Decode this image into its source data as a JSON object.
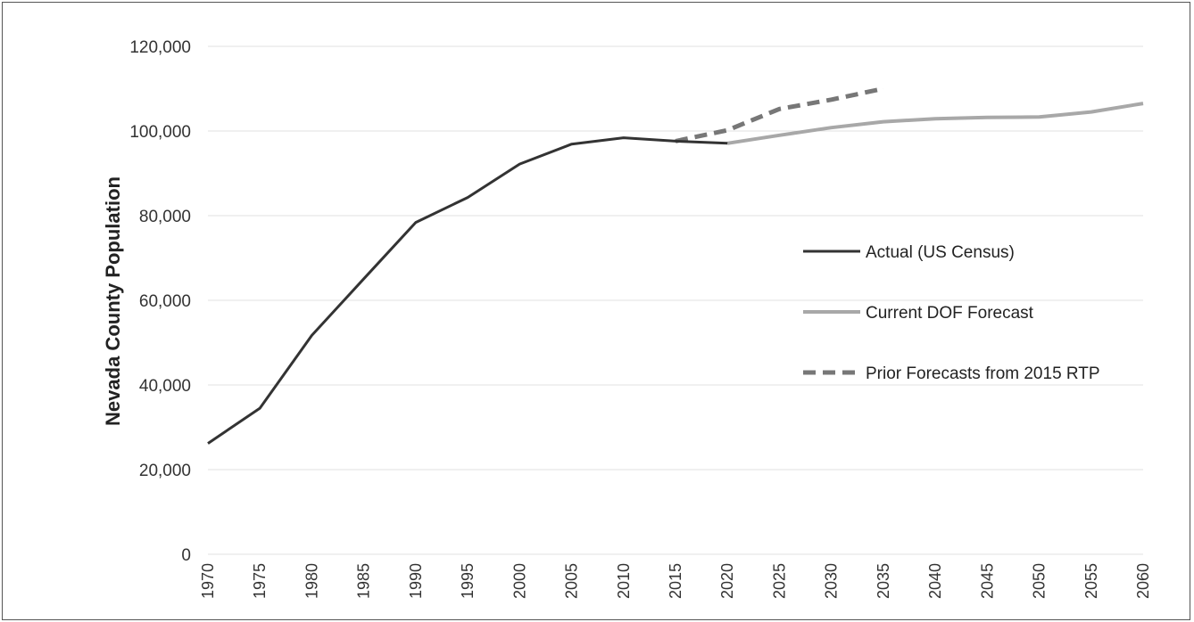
{
  "chart_data": {
    "type": "line",
    "title": "",
    "xlabel": "",
    "ylabel": "Nevada County Population",
    "ylim": [
      0,
      120000
    ],
    "xlim": [
      1970,
      2060
    ],
    "y_ticks": [
      "0",
      "20,000",
      "40,000",
      "60,000",
      "80,000",
      "100,000",
      "120,000"
    ],
    "x_ticks": [
      "1970",
      "1975",
      "1980",
      "1985",
      "1990",
      "1995",
      "2000",
      "2005",
      "2010",
      "2015",
      "2020",
      "2025",
      "2030",
      "2035",
      "2040",
      "2045",
      "2050",
      "2055",
      "2060"
    ],
    "grid": true,
    "legend_position": "right",
    "series": [
      {
        "name": "Actual (US Census)",
        "color": "#333333",
        "style": "solid",
        "x": [
          1970,
          1975,
          1980,
          1985,
          1990,
          1995,
          2000,
          2005,
          2010,
          2015,
          2020
        ],
        "y": [
          26200,
          34500,
          51700,
          65100,
          78400,
          84300,
          92200,
          96900,
          98400,
          97600,
          97100
        ]
      },
      {
        "name": "Current DOF Forecast",
        "color": "#a8a8a8",
        "style": "solid",
        "x": [
          2020,
          2025,
          2030,
          2035,
          2040,
          2045,
          2050,
          2055,
          2060
        ],
        "y": [
          97100,
          99000,
          100800,
          102200,
          102900,
          103200,
          103300,
          104500,
          106500
        ]
      },
      {
        "name": "Prior Forecasts from 2015 RTP",
        "color": "#777777",
        "style": "dashed",
        "x": [
          2015,
          2020,
          2025,
          2030,
          2035
        ],
        "y": [
          97600,
          100200,
          105200,
          107400,
          110000
        ]
      }
    ]
  }
}
